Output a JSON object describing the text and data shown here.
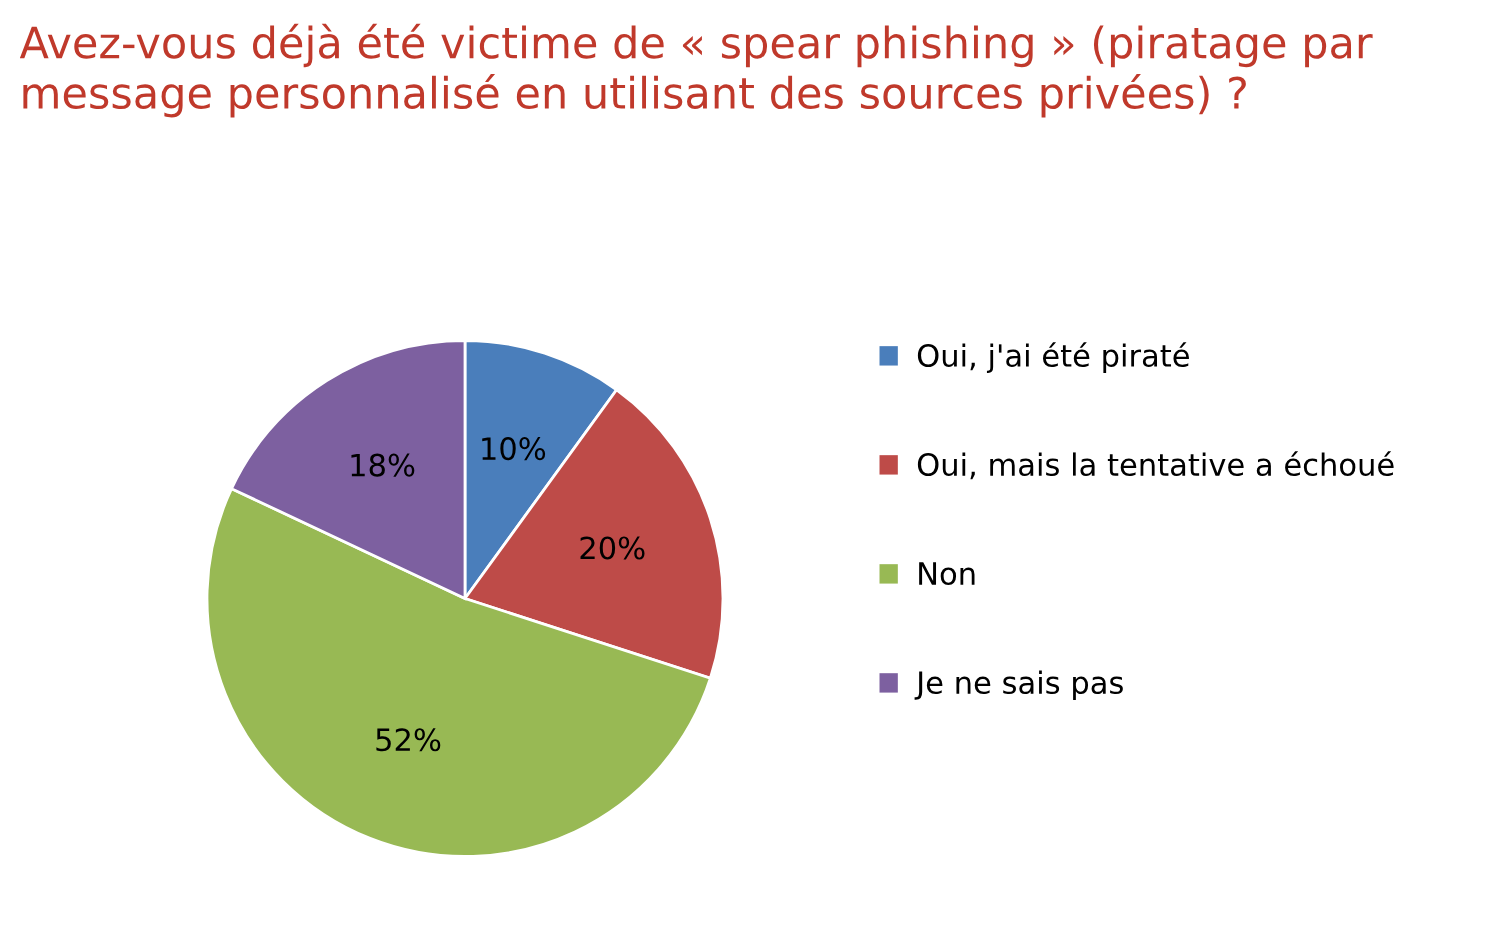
{
  "chart_data": {
    "type": "pie",
    "title": "Avez-vous déjà été victime de « spear phishing » (piratage par message personnalisé en utilisant des sources privées) ?",
    "categories": [
      "Oui, j'ai été piraté",
      "Oui, mais la tentative a échoué",
      "Non",
      "Je ne sais pas"
    ],
    "values": [
      10,
      20,
      52,
      18
    ],
    "value_labels": [
      "10%",
      "20%",
      "52%",
      "18%"
    ],
    "colors": [
      "#4a7ebb",
      "#be4b48",
      "#98b954",
      "#7d60a0"
    ],
    "legend": "right"
  }
}
